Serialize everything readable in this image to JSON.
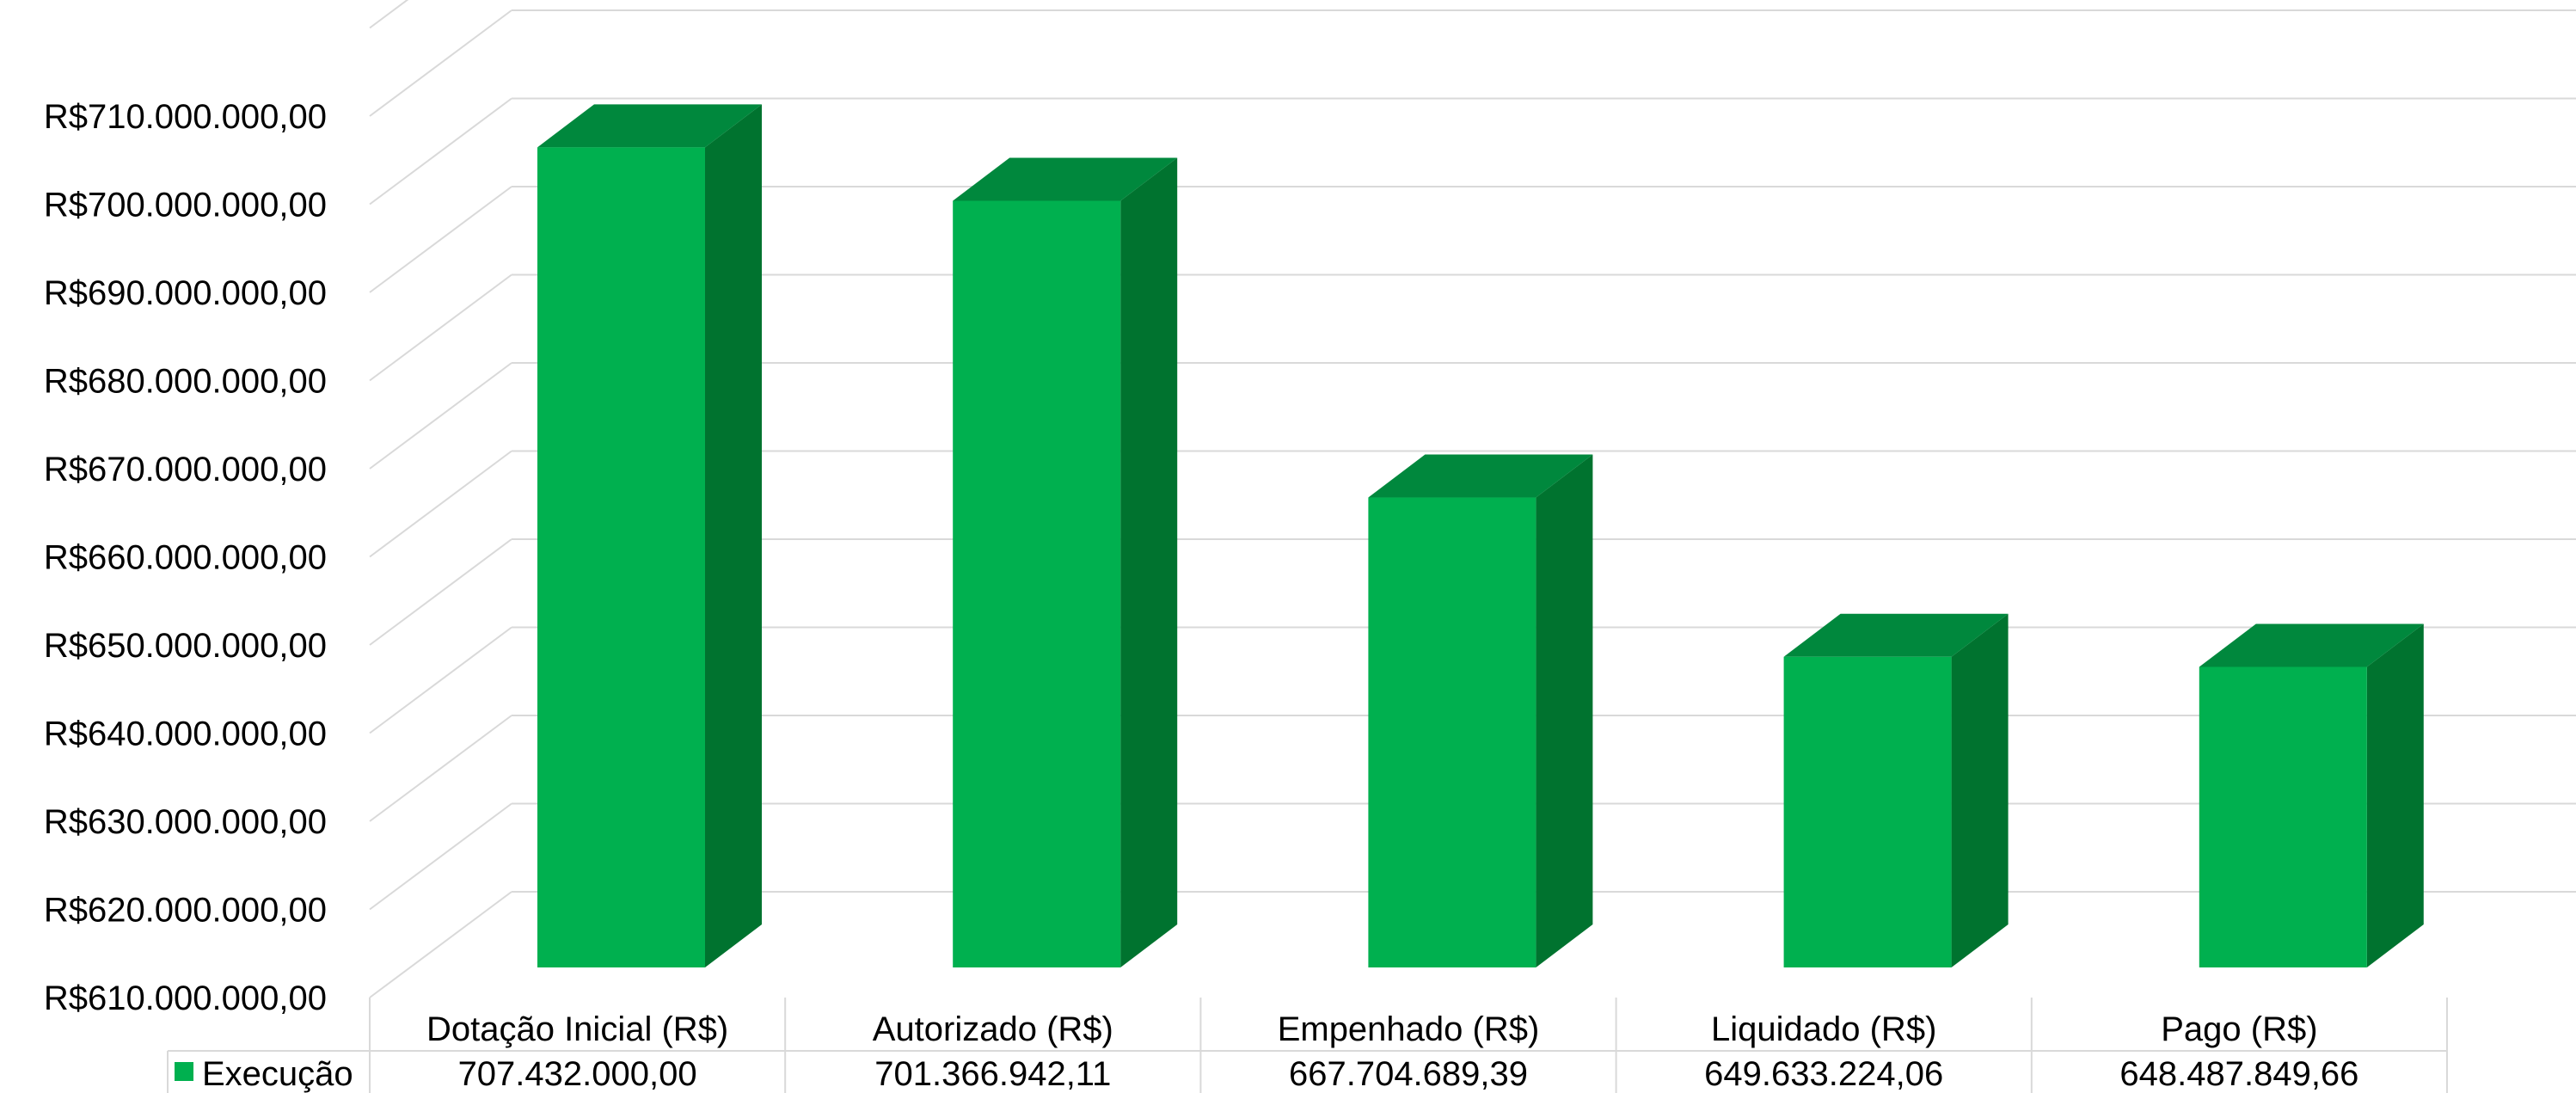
{
  "chart_data": {
    "type": "bar",
    "title": "",
    "xlabel": "",
    "ylabel": "",
    "categories": [
      "Dotação Inicial (R$)",
      "Autorizado (R$)",
      "Empenhado (R$)",
      "Liquidado (R$)",
      "Pago (R$)"
    ],
    "series": [
      {
        "name": "Execução",
        "values": [
          707432000.0,
          701366942.11,
          667704689.39,
          649633224.06,
          648487849.66
        ],
        "value_labels": [
          "707.432.000,00",
          "701.366.942,11",
          "667.704.689,39",
          "649.633.224,06",
          "648.487.849,66"
        ]
      }
    ],
    "ylim": [
      610000000,
      720000000
    ],
    "ytick_values": [
      610000000,
      620000000,
      630000000,
      640000000,
      650000000,
      660000000,
      670000000,
      680000000,
      690000000,
      700000000,
      710000000
    ],
    "ytick_labels": [
      "R$610.000.000,00",
      "R$620.000.000,00",
      "R$630.000.000,00",
      "R$640.000.000,00",
      "R$650.000.000,00",
      "R$660.000.000,00",
      "R$670.000.000,00",
      "R$680.000.000,00",
      "R$690.000.000,00",
      "R$700.000.000,00",
      "R$710.000.000,00"
    ],
    "grid": true,
    "legend": "data-table-bottom",
    "style": "3d-column",
    "colors": {
      "front": "#00b04f",
      "top": "#00883d",
      "side": "#00732f",
      "legend_key": "#00b04f",
      "grid": "#d9d9d9"
    }
  }
}
